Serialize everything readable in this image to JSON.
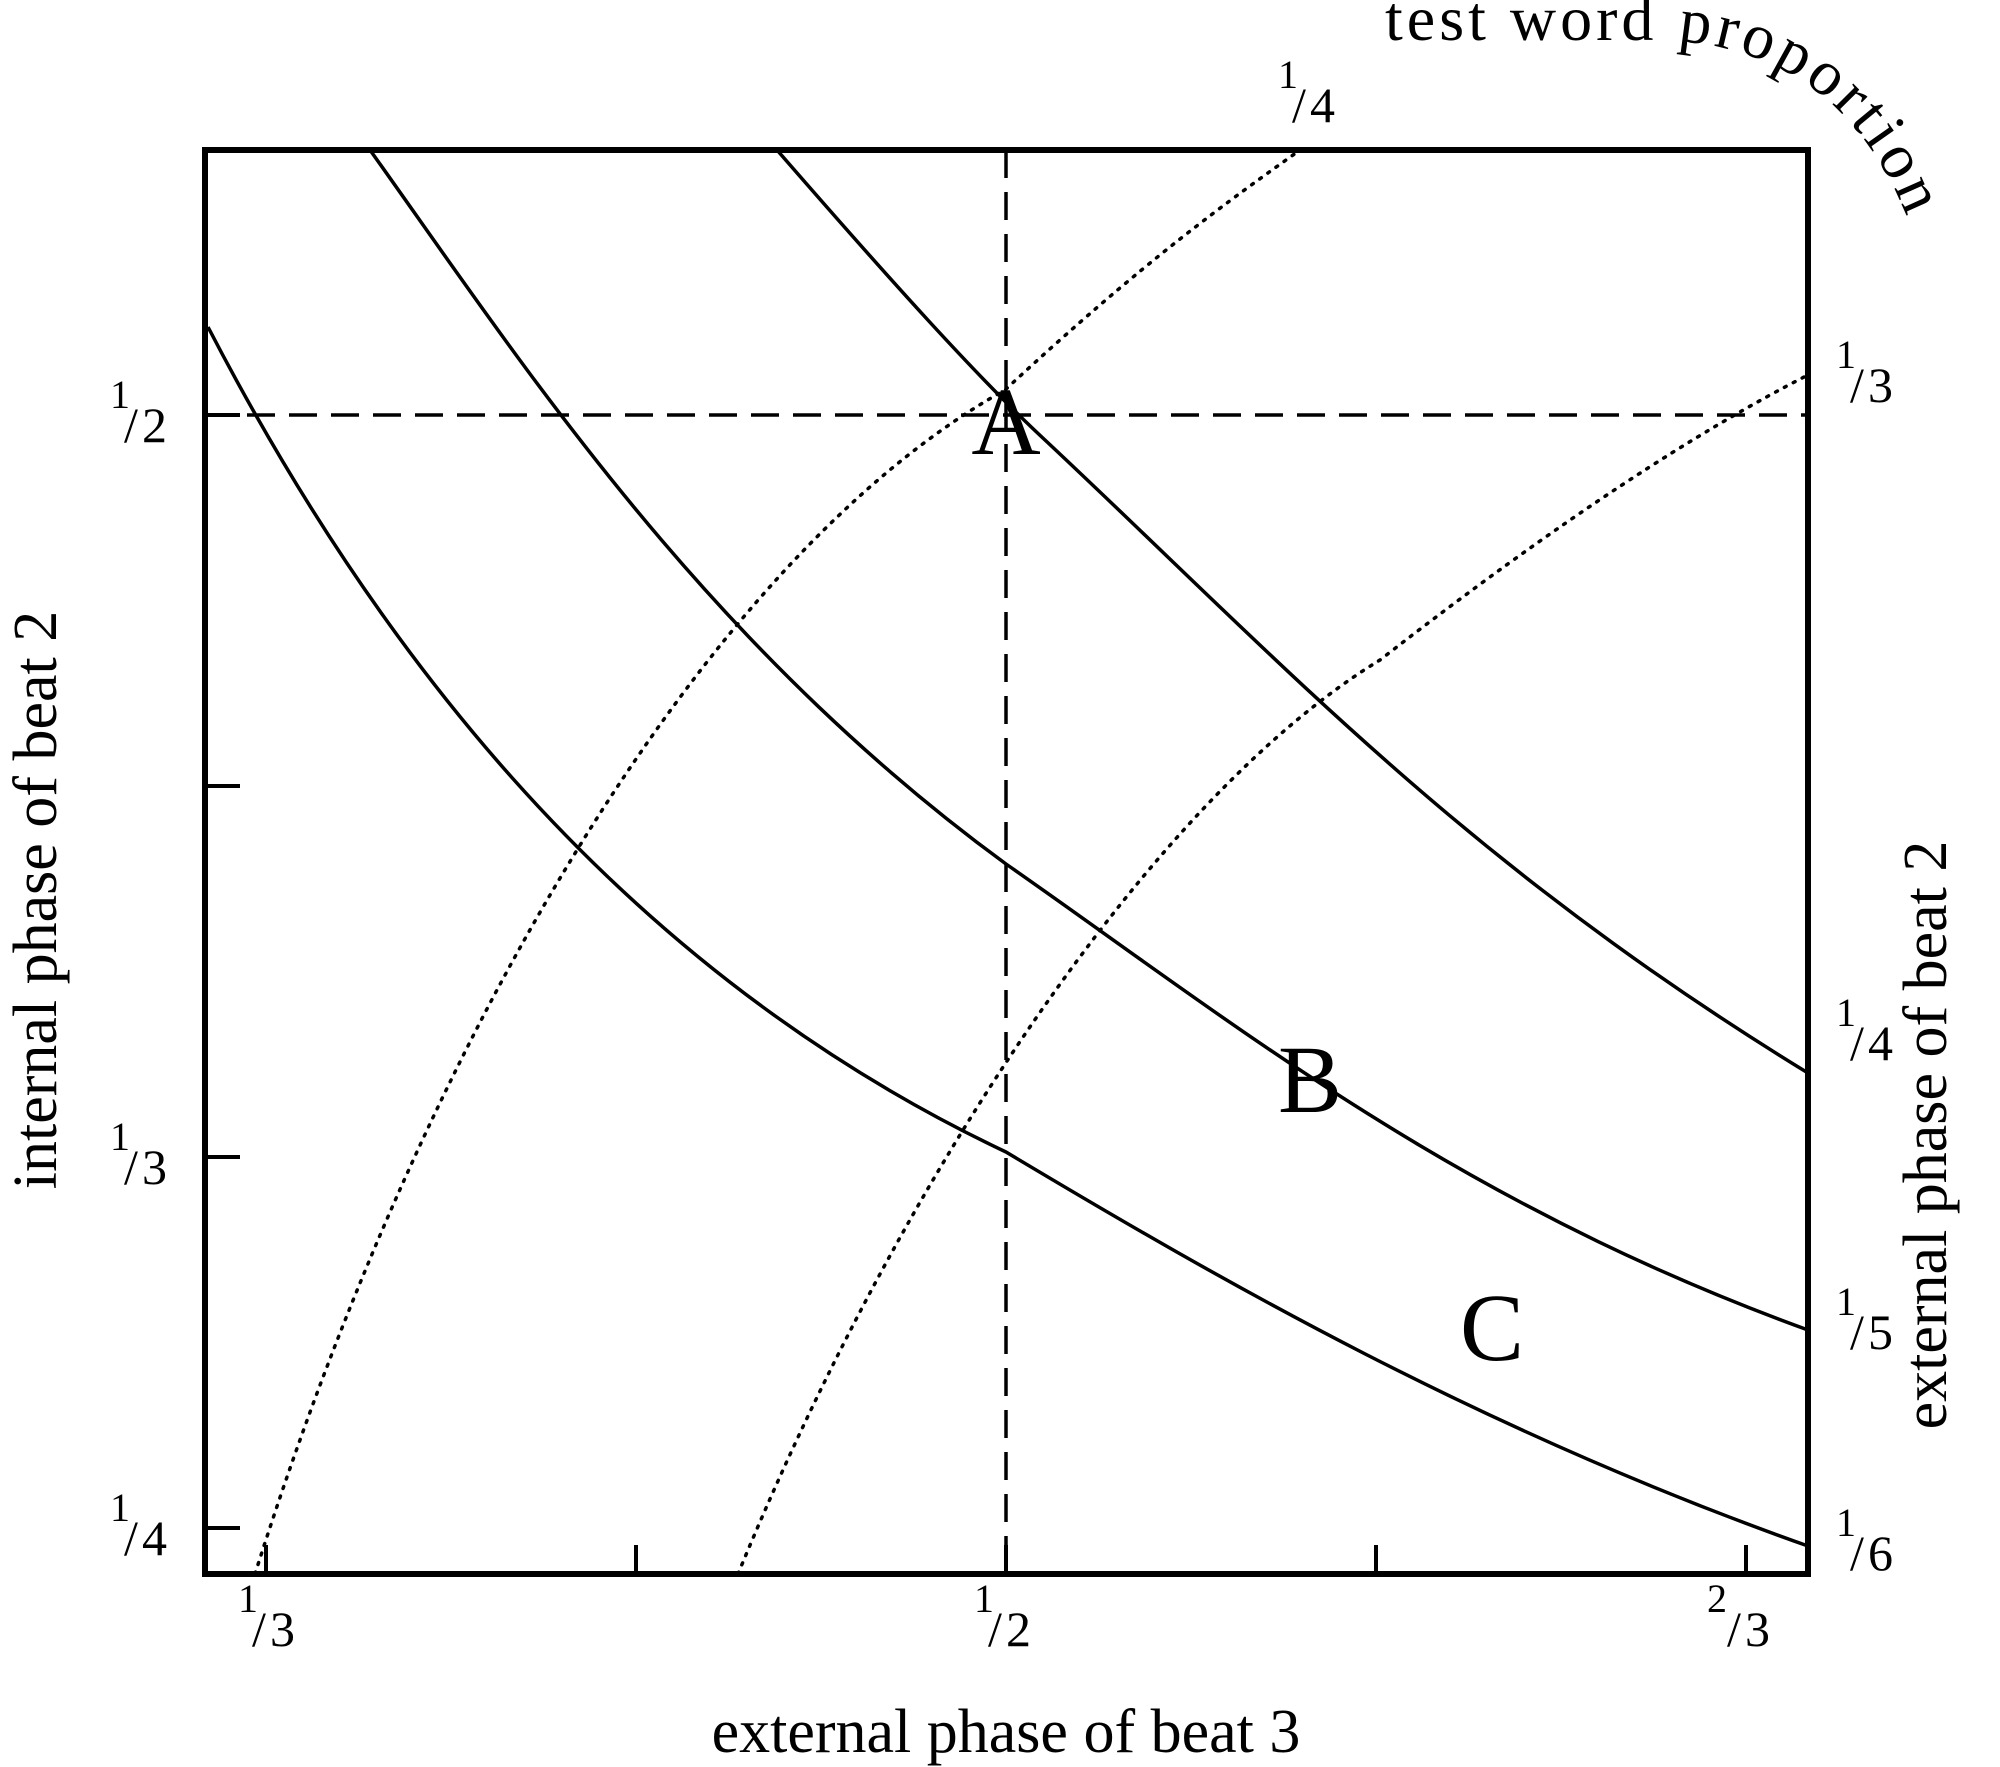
{
  "diagram": {
    "x_axis_label": "external phase of beat 3",
    "y_axis_left_label": "internal phase of beat 2",
    "y_axis_right_label": "external phase of beat 2",
    "top_label": "test word proportion",
    "x_ticks": [
      {
        "num": "1",
        "den": "3"
      },
      {
        "num": "1",
        "den": "2"
      },
      {
        "num": "2",
        "den": "3"
      }
    ],
    "y_left_ticks": [
      {
        "num": "1",
        "den": "2"
      },
      {
        "num": "1",
        "den": "3"
      },
      {
        "num": "1",
        "den": "4"
      }
    ],
    "y_right_ticks": [
      {
        "num": "1",
        "den": "3"
      },
      {
        "num": "1",
        "den": "4"
      },
      {
        "num": "1",
        "den": "5"
      },
      {
        "num": "1",
        "den": "6"
      }
    ],
    "top_ticks": [
      {
        "num": "1",
        "den": "4"
      }
    ],
    "regions": [
      "A",
      "B",
      "C"
    ]
  }
}
